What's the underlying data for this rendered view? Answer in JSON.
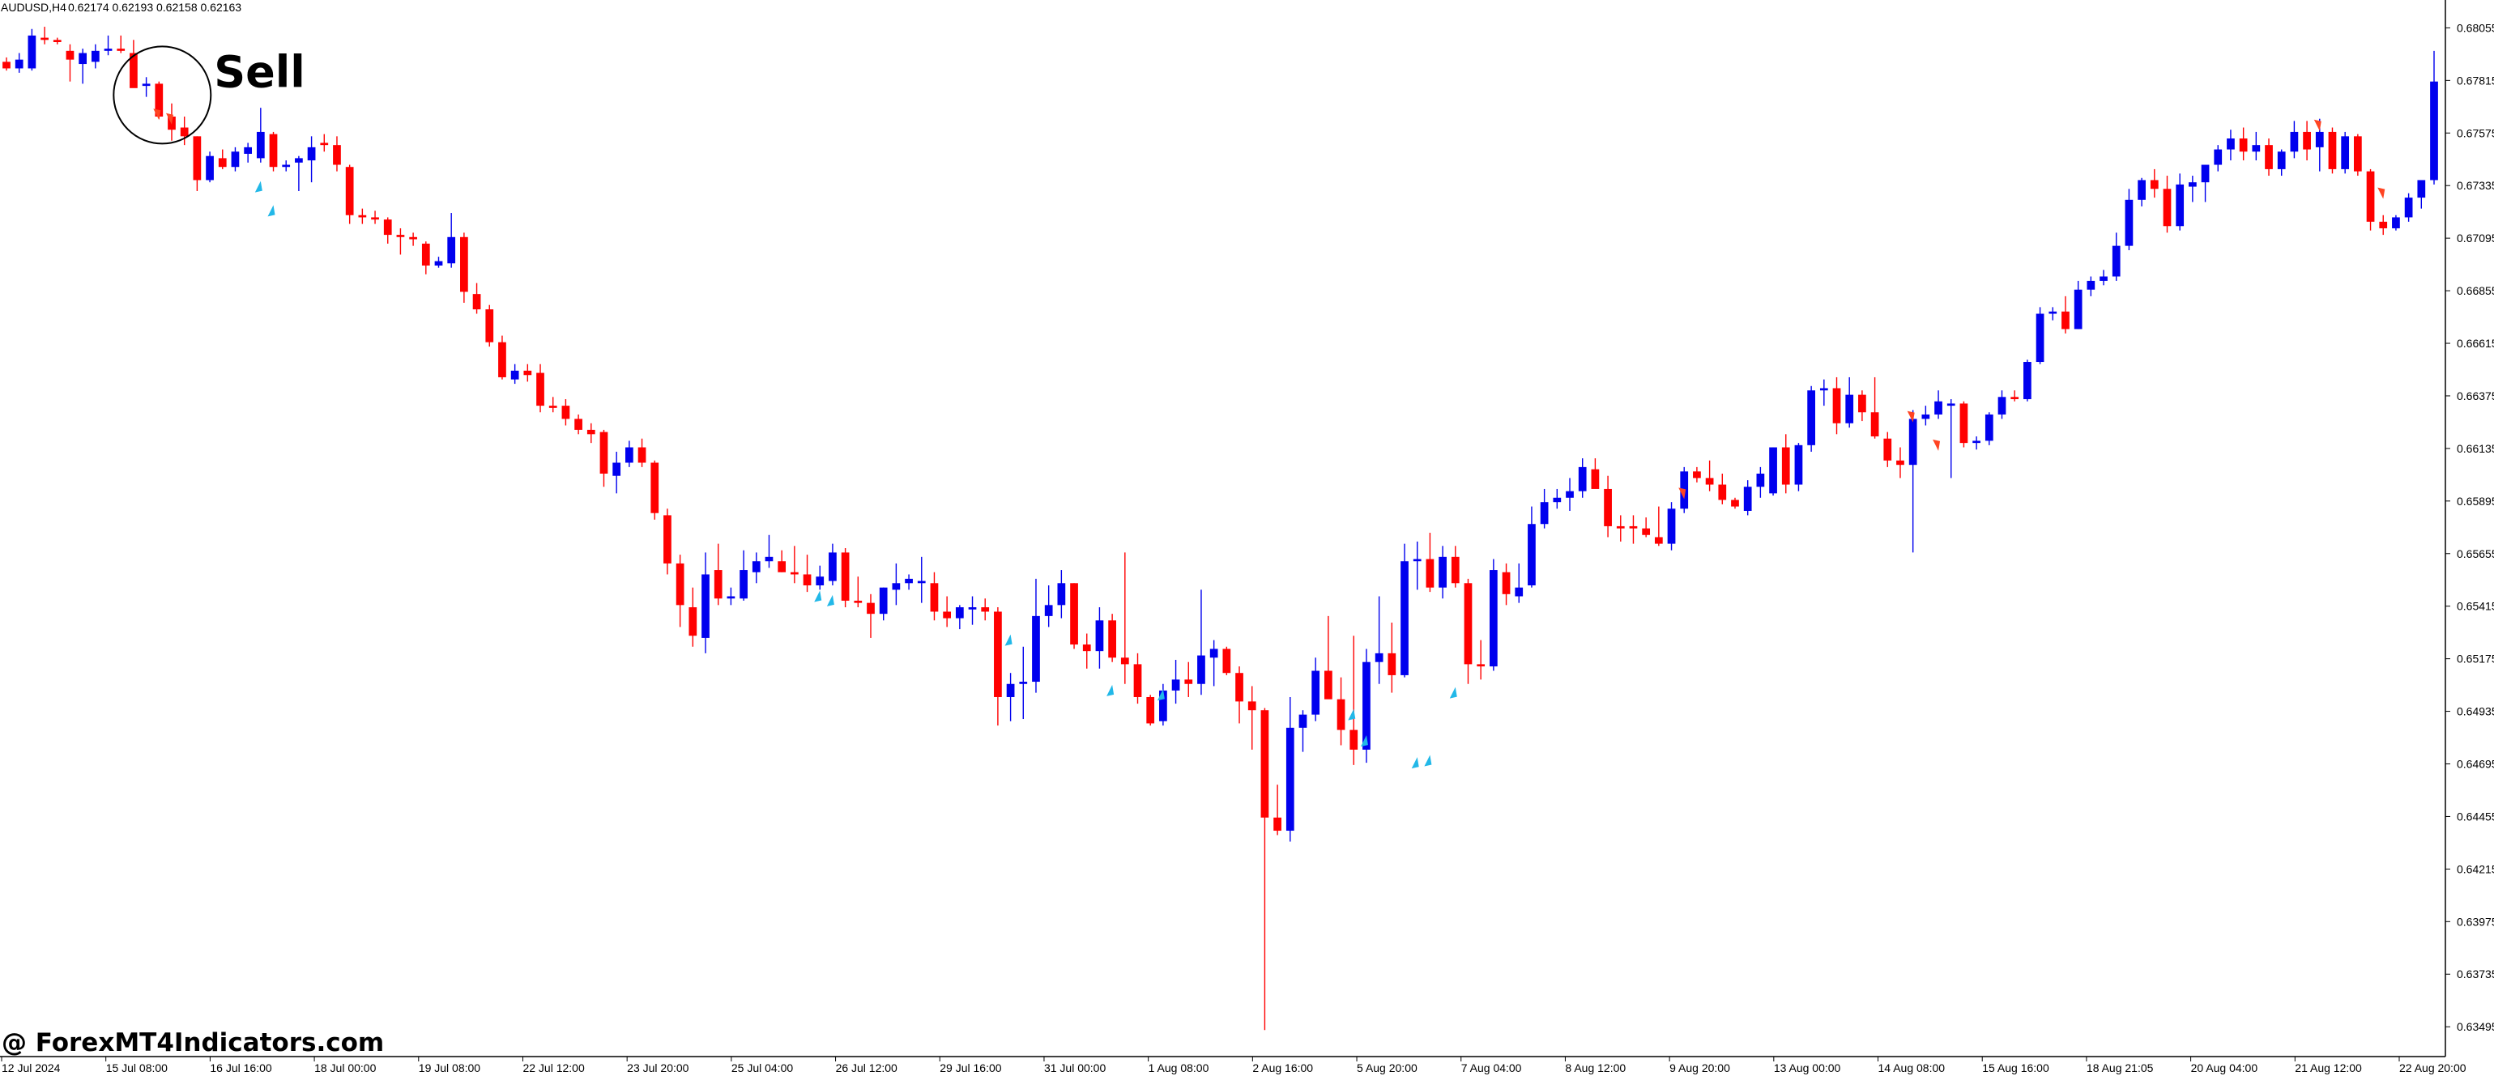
{
  "header": {
    "symbol": "AUDUSD,H4",
    "ohlc": "0.62174 0.62193 0.62158 0.62163"
  },
  "annotation": {
    "label": "Sell"
  },
  "watermark": {
    "text": "@ ForexMT4Indicators.com"
  },
  "colors": {
    "bull": "#0000ee",
    "bear": "#ff0000",
    "buy_arrow": "#22b8e8",
    "sell_arrow": "#ff4422",
    "background": "#ffffff",
    "axis": "#000000"
  },
  "chart_data": {
    "type": "candlestick",
    "y_range": [
      0.6337,
      0.6816
    ],
    "y_ticks": [
      "0.68055",
      "0.67815",
      "0.67575",
      "0.67335",
      "0.67095",
      "0.66855",
      "0.66615",
      "0.66375",
      "0.66135",
      "0.65895",
      "0.65655",
      "0.65415",
      "0.65175",
      "0.64935",
      "0.64695",
      "0.64455",
      "0.64215",
      "0.63975",
      "0.63735",
      "0.63495"
    ],
    "x_labels": [
      "12 Jul 2024",
      "15 Jul 08:00",
      "16 Jul 16:00",
      "18 Jul 00:00",
      "19 Jul 08:00",
      "22 Jul 12:00",
      "23 Jul 20:00",
      "25 Jul 04:00",
      "26 Jul 12:00",
      "29 Jul 16:00",
      "31 Jul 00:00",
      "1 Aug 08:00",
      "2 Aug 16:00",
      "5 Aug 20:00",
      "7 Aug 04:00",
      "8 Aug 12:00",
      "9 Aug 20:00",
      "13 Aug 00:00",
      "14 Aug 08:00",
      "15 Aug 16:00",
      "18 Aug 21:05",
      "20 Aug 04:00",
      "21 Aug 12:00",
      "22 Aug 20:00"
    ],
    "candles": [
      [
        0.679,
        0.6792,
        0.6786,
        0.6787
      ],
      [
        0.6787,
        0.6794,
        0.6785,
        0.6791
      ],
      [
        0.6787,
        0.6805,
        0.6786,
        0.6802
      ],
      [
        0.6801,
        0.6806,
        0.6798,
        0.68
      ],
      [
        0.68,
        0.6801,
        0.6798,
        0.6799
      ],
      [
        0.6795,
        0.6798,
        0.6781,
        0.6791
      ],
      [
        0.6789,
        0.6796,
        0.678,
        0.6794
      ],
      [
        0.679,
        0.6798,
        0.6787,
        0.6795
      ],
      [
        0.6795,
        0.6802,
        0.6793,
        0.6796
      ],
      [
        0.6796,
        0.6802,
        0.6794,
        0.6795
      ],
      [
        0.6794,
        0.68,
        0.6779,
        0.6778
      ],
      [
        0.6779,
        0.6783,
        0.6774,
        0.678
      ],
      [
        0.678,
        0.6781,
        0.6764,
        0.6765
      ],
      [
        0.6765,
        0.6771,
        0.6754,
        0.6759
      ],
      [
        0.676,
        0.6765,
        0.6752,
        0.6756
      ],
      [
        0.6756,
        0.6756,
        0.6731,
        0.6736
      ],
      [
        0.6736,
        0.6749,
        0.6735,
        0.6747
      ],
      [
        0.6746,
        0.675,
        0.6741,
        0.6742
      ],
      [
        0.6742,
        0.6751,
        0.674,
        0.6749
      ],
      [
        0.6748,
        0.6753,
        0.6744,
        0.6751
      ],
      [
        0.6746,
        0.6769,
        0.6744,
        0.6758
      ],
      [
        0.6757,
        0.6758,
        0.674,
        0.6742
      ],
      [
        0.6742,
        0.6745,
        0.674,
        0.6743
      ],
      [
        0.6744,
        0.6747,
        0.6731,
        0.6746
      ],
      [
        0.6745,
        0.6756,
        0.6735,
        0.6751
      ],
      [
        0.6753,
        0.6757,
        0.6749,
        0.6752
      ],
      [
        0.6752,
        0.6756,
        0.674,
        0.6743
      ],
      [
        0.6742,
        0.6743,
        0.6716,
        0.672
      ],
      [
        0.672,
        0.6723,
        0.6716,
        0.6719
      ],
      [
        0.6719,
        0.6722,
        0.6716,
        0.6718
      ],
      [
        0.6718,
        0.6719,
        0.6707,
        0.6711
      ],
      [
        0.6711,
        0.6714,
        0.6702,
        0.671
      ],
      [
        0.671,
        0.6712,
        0.6706,
        0.6709
      ],
      [
        0.6707,
        0.6708,
        0.6693,
        0.6697
      ],
      [
        0.6697,
        0.6701,
        0.6696,
        0.6699
      ],
      [
        0.6698,
        0.6721,
        0.6696,
        0.671
      ],
      [
        0.671,
        0.6712,
        0.668,
        0.6685
      ],
      [
        0.6684,
        0.6689,
        0.6675,
        0.6677
      ],
      [
        0.6677,
        0.6679,
        0.666,
        0.6662
      ],
      [
        0.6662,
        0.6665,
        0.6645,
        0.6646
      ],
      [
        0.6645,
        0.6652,
        0.6643,
        0.6649
      ],
      [
        0.6649,
        0.6652,
        0.6644,
        0.6647
      ],
      [
        0.6648,
        0.6652,
        0.663,
        0.6633
      ],
      [
        0.6633,
        0.6637,
        0.663,
        0.6632
      ],
      [
        0.6633,
        0.6636,
        0.6624,
        0.6627
      ],
      [
        0.6627,
        0.6629,
        0.662,
        0.6622
      ],
      [
        0.6622,
        0.6625,
        0.6616,
        0.662
      ],
      [
        0.6621,
        0.6622,
        0.6596,
        0.6602
      ],
      [
        0.6601,
        0.6612,
        0.6593,
        0.6607
      ],
      [
        0.6607,
        0.6617,
        0.6605,
        0.6614
      ],
      [
        0.6614,
        0.6618,
        0.6605,
        0.6607
      ],
      [
        0.6607,
        0.6608,
        0.6581,
        0.6584
      ],
      [
        0.6583,
        0.6586,
        0.6556,
        0.6561
      ],
      [
        0.6561,
        0.6565,
        0.6532,
        0.6542
      ],
      [
        0.6541,
        0.655,
        0.6523,
        0.6528
      ],
      [
        0.6527,
        0.6566,
        0.652,
        0.6556
      ],
      [
        0.6558,
        0.657,
        0.6542,
        0.6545
      ],
      [
        0.6545,
        0.655,
        0.6542,
        0.6546
      ],
      [
        0.6545,
        0.6567,
        0.6544,
        0.6558
      ],
      [
        0.6557,
        0.6566,
        0.6552,
        0.6562
      ],
      [
        0.6562,
        0.6574,
        0.6559,
        0.6564
      ],
      [
        0.6562,
        0.6567,
        0.6557,
        0.6557
      ],
      [
        0.6557,
        0.6569,
        0.6552,
        0.6556
      ],
      [
        0.6556,
        0.6565,
        0.6548,
        0.6551
      ],
      [
        0.6551,
        0.656,
        0.6549,
        0.6555
      ],
      [
        0.6553,
        0.657,
        0.6551,
        0.6566
      ],
      [
        0.6566,
        0.6568,
        0.6541,
        0.6544
      ],
      [
        0.6544,
        0.6555,
        0.6541,
        0.6543
      ],
      [
        0.6543,
        0.6547,
        0.6527,
        0.6538
      ],
      [
        0.6538,
        0.655,
        0.6535,
        0.655
      ],
      [
        0.6549,
        0.6561,
        0.6542,
        0.6552
      ],
      [
        0.6552,
        0.6556,
        0.6549,
        0.6554
      ],
      [
        0.6552,
        0.6564,
        0.6543,
        0.6553
      ],
      [
        0.6552,
        0.6557,
        0.6535,
        0.6539
      ],
      [
        0.6539,
        0.6546,
        0.6532,
        0.6536
      ],
      [
        0.6536,
        0.6542,
        0.6531,
        0.6541
      ],
      [
        0.654,
        0.6546,
        0.6533,
        0.6541
      ],
      [
        0.6541,
        0.6545,
        0.6535,
        0.6539
      ],
      [
        0.6539,
        0.6541,
        0.6487,
        0.65
      ],
      [
        0.65,
        0.6511,
        0.6489,
        0.6506
      ],
      [
        0.6506,
        0.6523,
        0.649,
        0.6507
      ],
      [
        0.6507,
        0.6554,
        0.6502,
        0.6537
      ],
      [
        0.6537,
        0.6551,
        0.6532,
        0.6542
      ],
      [
        0.6542,
        0.6558,
        0.6536,
        0.6552
      ],
      [
        0.6552,
        0.6552,
        0.6522,
        0.6524
      ],
      [
        0.6524,
        0.6529,
        0.6513,
        0.6521
      ],
      [
        0.6521,
        0.6541,
        0.6513,
        0.6535
      ],
      [
        0.6535,
        0.6538,
        0.6516,
        0.6518
      ],
      [
        0.6518,
        0.6566,
        0.6506,
        0.6515
      ],
      [
        0.6515,
        0.652,
        0.6497,
        0.65
      ],
      [
        0.65,
        0.6501,
        0.6487,
        0.6488
      ],
      [
        0.6489,
        0.6506,
        0.6487,
        0.6503
      ],
      [
        0.6503,
        0.6517,
        0.6497,
        0.6508
      ],
      [
        0.6508,
        0.6516,
        0.65,
        0.6506
      ],
      [
        0.6506,
        0.6549,
        0.6501,
        0.6519
      ],
      [
        0.6518,
        0.6526,
        0.6505,
        0.6522
      ],
      [
        0.6522,
        0.6523,
        0.651,
        0.6511
      ],
      [
        0.6511,
        0.6514,
        0.6488,
        0.6498
      ],
      [
        0.6498,
        0.6505,
        0.6476,
        0.6494
      ],
      [
        0.6494,
        0.6495,
        0.6348,
        0.6445
      ],
      [
        0.6445,
        0.646,
        0.6437,
        0.6439
      ],
      [
        0.6439,
        0.65,
        0.6434,
        0.6486
      ],
      [
        0.6486,
        0.6494,
        0.6475,
        0.6492
      ],
      [
        0.6492,
        0.6518,
        0.6489,
        0.6512
      ],
      [
        0.6512,
        0.6537,
        0.6502,
        0.6499
      ],
      [
        0.6499,
        0.6509,
        0.6478,
        0.6485
      ],
      [
        0.6485,
        0.6528,
        0.6469,
        0.6476
      ],
      [
        0.6476,
        0.6522,
        0.647,
        0.6516
      ],
      [
        0.6516,
        0.6546,
        0.6506,
        0.652
      ],
      [
        0.652,
        0.6534,
        0.6502,
        0.651
      ],
      [
        0.651,
        0.657,
        0.6509,
        0.6562
      ],
      [
        0.6562,
        0.6571,
        0.6549,
        0.6563
      ],
      [
        0.6563,
        0.6575,
        0.6548,
        0.655
      ],
      [
        0.655,
        0.6569,
        0.6545,
        0.6564
      ],
      [
        0.6564,
        0.6569,
        0.655,
        0.6552
      ],
      [
        0.6552,
        0.6554,
        0.6506,
        0.6515
      ],
      [
        0.6515,
        0.6526,
        0.6508,
        0.6514
      ],
      [
        0.6514,
        0.6563,
        0.6512,
        0.6558
      ],
      [
        0.6557,
        0.6561,
        0.6542,
        0.6547
      ],
      [
        0.6546,
        0.6561,
        0.6543,
        0.655
      ],
      [
        0.6551,
        0.6587,
        0.655,
        0.6579
      ],
      [
        0.6579,
        0.6595,
        0.6577,
        0.6589
      ],
      [
        0.6589,
        0.6595,
        0.6586,
        0.6591
      ],
      [
        0.6591,
        0.66,
        0.6585,
        0.6594
      ],
      [
        0.6594,
        0.6609,
        0.6591,
        0.6605
      ],
      [
        0.6604,
        0.6609,
        0.6596,
        0.6595
      ],
      [
        0.6595,
        0.6601,
        0.6573,
        0.6578
      ],
      [
        0.6578,
        0.6583,
        0.6571,
        0.6577
      ],
      [
        0.6578,
        0.6583,
        0.657,
        0.6577
      ],
      [
        0.6577,
        0.6582,
        0.6573,
        0.6574
      ],
      [
        0.6573,
        0.6587,
        0.6569,
        0.657
      ],
      [
        0.657,
        0.6589,
        0.6567,
        0.6586
      ],
      [
        0.6586,
        0.6605,
        0.6584,
        0.6603
      ],
      [
        0.6603,
        0.6605,
        0.6598,
        0.66
      ],
      [
        0.66,
        0.6608,
        0.6594,
        0.6597
      ],
      [
        0.6597,
        0.6602,
        0.6588,
        0.659
      ],
      [
        0.659,
        0.6591,
        0.6586,
        0.6587
      ],
      [
        0.6585,
        0.6599,
        0.6583,
        0.6596
      ],
      [
        0.6596,
        0.6605,
        0.6591,
        0.6602
      ],
      [
        0.6593,
        0.6614,
        0.6592,
        0.6614
      ],
      [
        0.6614,
        0.662,
        0.6593,
        0.6597
      ],
      [
        0.6597,
        0.6616,
        0.6594,
        0.6615
      ],
      [
        0.6615,
        0.6642,
        0.6612,
        0.664
      ],
      [
        0.664,
        0.6645,
        0.6633,
        0.6641
      ],
      [
        0.6641,
        0.6646,
        0.662,
        0.6625
      ],
      [
        0.6625,
        0.6646,
        0.6623,
        0.6638
      ],
      [
        0.6638,
        0.664,
        0.6626,
        0.663
      ],
      [
        0.663,
        0.6646,
        0.6618,
        0.6619
      ],
      [
        0.6618,
        0.6621,
        0.6605,
        0.6608
      ],
      [
        0.6608,
        0.6614,
        0.66,
        0.6606
      ],
      [
        0.6606,
        0.6631,
        0.6566,
        0.6627
      ],
      [
        0.6627,
        0.6633,
        0.6624,
        0.6629
      ],
      [
        0.6629,
        0.664,
        0.6627,
        0.6635
      ],
      [
        0.6633,
        0.6636,
        0.66,
        0.6634
      ],
      [
        0.6634,
        0.6635,
        0.6614,
        0.6616
      ],
      [
        0.6616,
        0.6619,
        0.6613,
        0.6617
      ],
      [
        0.6617,
        0.663,
        0.6615,
        0.6629
      ],
      [
        0.6629,
        0.664,
        0.6627,
        0.6637
      ],
      [
        0.6637,
        0.664,
        0.6635,
        0.6636
      ],
      [
        0.6636,
        0.6654,
        0.6635,
        0.6653
      ],
      [
        0.6653,
        0.6678,
        0.6652,
        0.6675
      ],
      [
        0.6675,
        0.6678,
        0.6672,
        0.6676
      ],
      [
        0.6676,
        0.6683,
        0.6666,
        0.6668
      ],
      [
        0.6668,
        0.669,
        0.6668,
        0.6686
      ],
      [
        0.6686,
        0.6692,
        0.6683,
        0.669
      ],
      [
        0.669,
        0.6695,
        0.6688,
        0.6692
      ],
      [
        0.6692,
        0.6712,
        0.669,
        0.6706
      ],
      [
        0.6706,
        0.6732,
        0.6704,
        0.6727
      ],
      [
        0.6727,
        0.6737,
        0.6724,
        0.6736
      ],
      [
        0.6736,
        0.6741,
        0.6728,
        0.6732
      ],
      [
        0.6732,
        0.6738,
        0.6712,
        0.6715
      ],
      [
        0.6715,
        0.6739,
        0.6713,
        0.6734
      ],
      [
        0.6733,
        0.6738,
        0.6726,
        0.6735
      ],
      [
        0.6735,
        0.6743,
        0.6726,
        0.6743
      ],
      [
        0.6743,
        0.6752,
        0.674,
        0.675
      ],
      [
        0.675,
        0.6759,
        0.6745,
        0.6755
      ],
      [
        0.6755,
        0.676,
        0.6745,
        0.6749
      ],
      [
        0.6749,
        0.6758,
        0.6745,
        0.6752
      ],
      [
        0.6752,
        0.6755,
        0.6738,
        0.6741
      ],
      [
        0.6741,
        0.675,
        0.6738,
        0.6749
      ],
      [
        0.6749,
        0.6763,
        0.6746,
        0.6758
      ],
      [
        0.6758,
        0.6763,
        0.6745,
        0.675
      ],
      [
        0.6751,
        0.6764,
        0.674,
        0.6758
      ],
      [
        0.6758,
        0.676,
        0.6739,
        0.6741
      ],
      [
        0.6741,
        0.6758,
        0.6739,
        0.6756
      ],
      [
        0.6756,
        0.6757,
        0.6738,
        0.674
      ],
      [
        0.674,
        0.6741,
        0.6713,
        0.6717
      ],
      [
        0.6717,
        0.672,
        0.6711,
        0.6714
      ],
      [
        0.6714,
        0.672,
        0.6713,
        0.6719
      ],
      [
        0.6719,
        0.673,
        0.6717,
        0.6728
      ],
      [
        0.6728,
        0.6735,
        0.6723,
        0.6736
      ],
      [
        0.6736,
        0.6795,
        0.6734,
        0.6781
      ]
    ],
    "buy_arrows": [
      [
        20,
        0.6733
      ],
      [
        21,
        0.6722
      ],
      [
        64,
        0.6546
      ],
      [
        65,
        0.6544
      ],
      [
        79,
        0.6526
      ],
      [
        87,
        0.6503
      ],
      [
        91,
        0.6501
      ],
      [
        106,
        0.6492
      ],
      [
        107,
        0.648
      ],
      [
        111,
        0.647
      ],
      [
        112,
        0.6471
      ],
      [
        114,
        0.6502
      ]
    ],
    "sell_arrows": [
      [
        12,
        0.6766
      ],
      [
        13,
        0.6764
      ],
      [
        132,
        0.6593
      ],
      [
        150,
        0.6628
      ],
      [
        152,
        0.6615
      ],
      [
        182,
        0.6761
      ],
      [
        187,
        0.673
      ]
    ],
    "sell_circle_candle": 12
  }
}
